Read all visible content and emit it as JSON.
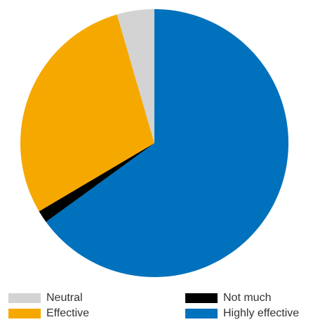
{
  "chart_data": {
    "type": "pie",
    "title": "",
    "start_angle_deg": 0,
    "direction": "clockwise",
    "slices": [
      {
        "label": "Highly effective",
        "value": 65,
        "color": "#0071bc"
      },
      {
        "label": "Not much",
        "value": 1.5,
        "color": "#000000"
      },
      {
        "label": "Effective",
        "value": 29,
        "color": "#f5a800"
      },
      {
        "label": "Neutral",
        "value": 4.5,
        "color": "#d3d3d3"
      }
    ],
    "legend": [
      {
        "label": "Neutral",
        "color": "#d3d3d3"
      },
      {
        "label": "Not much",
        "color": "#000000"
      },
      {
        "label": "Effective",
        "color": "#f5a800"
      },
      {
        "label": "Highly effective",
        "color": "#0071bc"
      }
    ],
    "legend_position": "bottom"
  }
}
